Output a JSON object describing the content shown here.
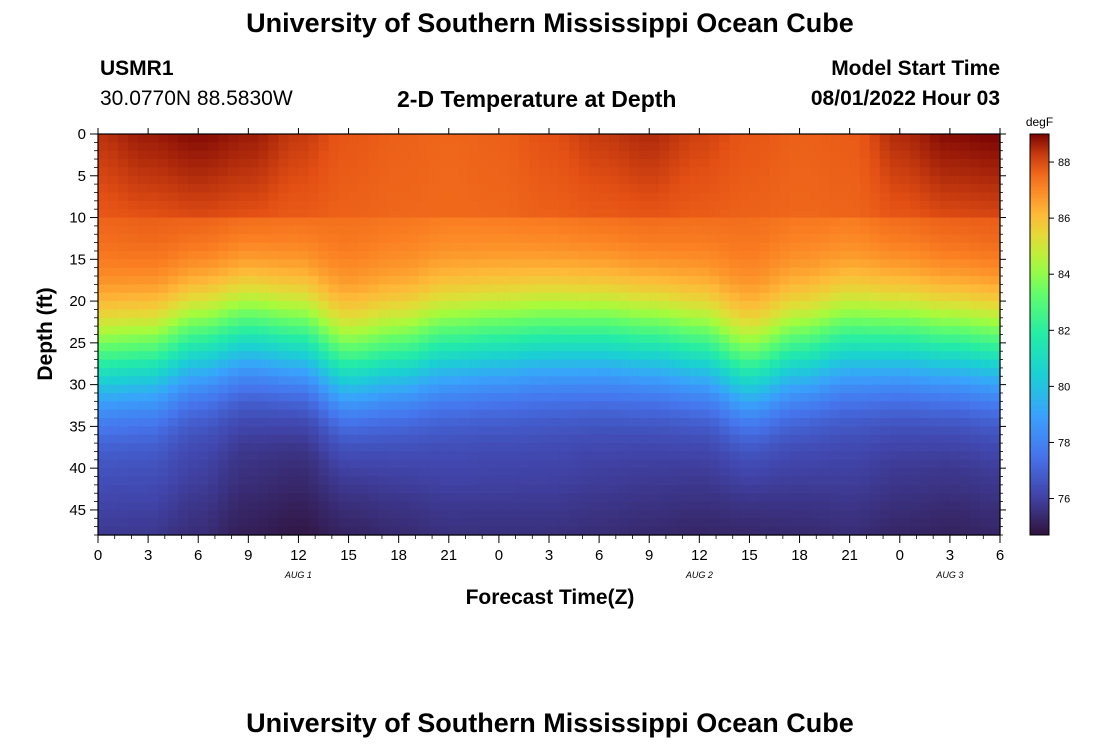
{
  "header": {
    "title": "University of Southern Mississippi Ocean Cube",
    "station_id": "USMR1",
    "coordinates": "30.0770N  88.5830W",
    "chart_title": "2-D Temperature at Depth",
    "model_start_label": "Model Start Time",
    "model_start_value": "08/01/2022 Hour 03"
  },
  "footer": {
    "title": "University of Southern Mississippi Ocean Cube"
  },
  "chart_data": {
    "type": "heatmap",
    "title": "2-D Temperature at Depth",
    "xlabel": "Forecast Time(Z)",
    "ylabel": "Depth (ft)",
    "x_ticks": [
      "0",
      "3",
      "6",
      "9",
      "12",
      "15",
      "18",
      "21",
      "0",
      "3",
      "6",
      "9",
      "12",
      "15",
      "18",
      "21",
      "0",
      "3",
      "6"
    ],
    "x_range_hours": [
      0,
      54
    ],
    "day_labels": [
      {
        "label": "AUG 1",
        "hour": 12
      },
      {
        "label": "AUG 2",
        "hour": 36
      },
      {
        "label": "AUG 3",
        "hour": 51
      }
    ],
    "y_ticks": [
      0,
      5,
      10,
      15,
      20,
      25,
      30,
      35,
      40,
      45
    ],
    "y_range_ft": [
      0,
      48
    ],
    "colorbar": {
      "unit": "degF",
      "ticks": [
        76,
        78,
        80,
        82,
        84,
        86,
        88
      ],
      "range": [
        74.7,
        89.0
      ]
    },
    "surface_temp_degF": [
      88.4,
      88.7,
      88.9,
      88.7,
      88.3,
      87.9,
      87.7,
      87.6,
      87.7,
      88.0,
      88.3,
      88.5,
      88.2,
      87.9,
      87.7,
      87.8,
      88.5,
      88.9,
      89.0
    ],
    "thermocline_depth_ft": [
      27.5,
      27.0,
      25.0,
      24.0,
      25.0,
      28.0,
      27.0,
      25.5,
      25.0,
      24.5,
      24.5,
      25.0,
      26.0,
      28.5,
      26.5,
      25.0,
      25.0,
      25.5,
      26.0
    ],
    "bottom_temp_degF": [
      76.0,
      76.0,
      75.7,
      75.3,
      75.1,
      75.4,
      75.6,
      75.8,
      75.8,
      75.8,
      75.7,
      75.6,
      75.5,
      75.5,
      75.6,
      75.7,
      75.5,
      75.4,
      75.5
    ]
  }
}
